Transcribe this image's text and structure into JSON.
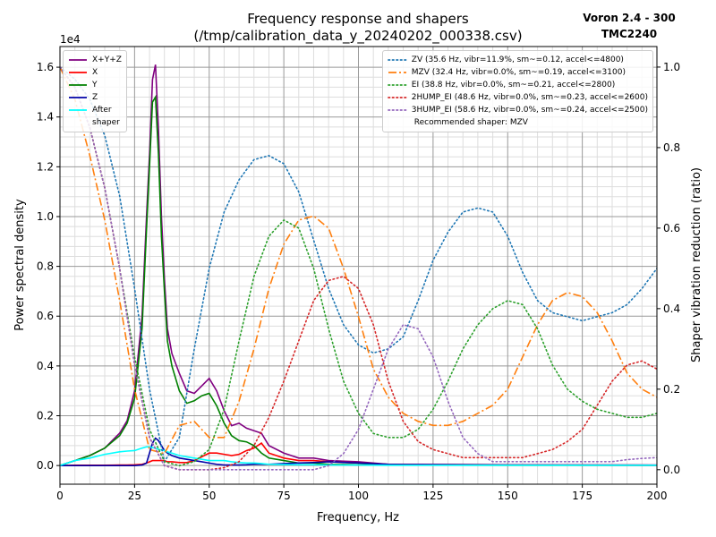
{
  "chart_data": {
    "type": "line",
    "title": [
      "Frequency response and shapers",
      "(/tmp/calibration_data_y_20240202_000338.csv)"
    ],
    "annotation": [
      "Voron 2.4 - 300",
      "TMC2240"
    ],
    "xlabel": "Frequency, Hz",
    "ylabel": "Power spectral density",
    "y2label": "Shaper vibration reduction (ratio)",
    "y_offset_label": "1e4",
    "xlim": [
      0,
      200
    ],
    "xticks": [
      0,
      25,
      50,
      75,
      100,
      125,
      150,
      175,
      200
    ],
    "ylim": [
      -0.075,
      1.683
    ],
    "yticks": [
      {
        "value": 0,
        "label": "0.0"
      },
      0.2,
      0.4,
      0.6,
      0.8,
      {
        "value": 1,
        "label": "1.0"
      },
      1.2,
      1.4,
      1.6
    ],
    "y2lim": [
      -0.036,
      1.051
    ],
    "y2ticks": [
      {
        "value": 0,
        "label": "0.0"
      },
      0.2,
      0.4,
      0.6,
      0.8,
      {
        "value": 1,
        "label": "1.0"
      }
    ],
    "grid": true,
    "minor_grid": true,
    "legend": "upper left",
    "legend2": "upper right",
    "legend2_note": "Recommended shaper: MZV",
    "x": [
      0,
      5,
      10,
      15,
      20,
      22.5,
      25,
      27.5,
      29,
      30,
      31,
      32,
      33,
      34,
      35,
      36,
      37.5,
      40,
      42.5,
      45,
      47.5,
      50,
      52.5,
      55,
      57.5,
      60,
      62.5,
      65,
      67.5,
      70,
      75,
      80,
      85,
      90,
      100,
      110,
      120,
      150,
      200
    ],
    "series": [
      {
        "name": "X+Y+Z",
        "color": "purple",
        "linestyle": "solid",
        "values": [
          0,
          0.02,
          0.04,
          0.07,
          0.13,
          0.18,
          0.3,
          0.6,
          1.0,
          1.25,
          1.55,
          1.61,
          1.35,
          1.0,
          0.75,
          0.55,
          0.45,
          0.37,
          0.3,
          0.29,
          0.32,
          0.35,
          0.3,
          0.22,
          0.16,
          0.17,
          0.15,
          0.14,
          0.13,
          0.08,
          0.05,
          0.03,
          0.03,
          0.02,
          0.015,
          0.005,
          0.005,
          0.003,
          0.002
        ]
      },
      {
        "name": "X",
        "color": "red",
        "linestyle": "solid",
        "values": [
          0,
          0.001,
          0.001,
          0.001,
          0.002,
          0.002,
          0.003,
          0.005,
          0.01,
          0.015,
          0.02,
          0.02,
          0.02,
          0.02,
          0.02,
          0.015,
          0.015,
          0.012,
          0.012,
          0.02,
          0.035,
          0.05,
          0.05,
          0.045,
          0.04,
          0.045,
          0.06,
          0.07,
          0.09,
          0.05,
          0.03,
          0.02,
          0.02,
          0.015,
          0.01,
          0.005,
          0.003,
          0.002,
          0.001
        ]
      },
      {
        "name": "Y",
        "color": "green",
        "linestyle": "solid",
        "values": [
          0,
          0.02,
          0.04,
          0.07,
          0.12,
          0.17,
          0.27,
          0.55,
          0.95,
          1.2,
          1.46,
          1.48,
          1.25,
          0.92,
          0.7,
          0.5,
          0.4,
          0.3,
          0.25,
          0.26,
          0.28,
          0.29,
          0.24,
          0.17,
          0.12,
          0.1,
          0.095,
          0.08,
          0.05,
          0.03,
          0.02,
          0.01,
          0.01,
          0.005,
          0.003,
          0.002,
          0.002,
          0.001,
          0.001
        ]
      },
      {
        "name": "Z",
        "color": "#0000a8",
        "linestyle": "solid",
        "values": [
          0,
          0,
          0,
          0,
          0,
          0,
          0,
          0.002,
          0.01,
          0.05,
          0.09,
          0.11,
          0.1,
          0.08,
          0.06,
          0.05,
          0.04,
          0.03,
          0.025,
          0.02,
          0.015,
          0.01,
          0.005,
          0.002,
          0.002,
          0.002,
          0.003,
          0.005,
          0.005,
          0.005,
          0.008,
          0.01,
          0.012,
          0.015,
          0.01,
          0.005,
          0.003,
          0.002,
          0.001
        ]
      },
      {
        "name": "After\nshaper",
        "color": "cyan",
        "linestyle": "solid",
        "values": [
          0,
          0.02,
          0.03,
          0.045,
          0.055,
          0.058,
          0.06,
          0.07,
          0.075,
          0.075,
          0.072,
          0.07,
          0.065,
          0.062,
          0.06,
          0.055,
          0.05,
          0.04,
          0.035,
          0.03,
          0.025,
          0.02,
          0.02,
          0.02,
          0.015,
          0.012,
          0.01,
          0.01,
          0.008,
          0.005,
          0.004,
          0.003,
          0.003,
          0.002,
          0.002,
          0.001,
          0.001,
          0.001,
          0.001
        ]
      },
      {
        "name": "ZV (35.6 Hz, vibr=11.9%, sm~=0.12, accel<=4800)",
        "color": "#1f77b4",
        "linestyle": "dotted",
        "axis": "y2",
        "x": [
          0,
          5,
          10,
          15,
          20,
          25,
          30,
          35,
          40,
          45,
          50,
          55,
          60,
          65,
          70,
          75,
          80,
          85,
          90,
          95,
          100,
          105,
          110,
          115,
          120,
          125,
          130,
          135,
          140,
          145,
          150,
          155,
          160,
          165,
          170,
          175,
          180,
          185,
          190,
          195,
          200
        ],
        "values": [
          1.0,
          0.97,
          0.92,
          0.83,
          0.68,
          0.45,
          0.2,
          0.02,
          0.08,
          0.3,
          0.5,
          0.64,
          0.72,
          0.77,
          0.78,
          0.76,
          0.69,
          0.57,
          0.45,
          0.36,
          0.31,
          0.29,
          0.3,
          0.33,
          0.42,
          0.52,
          0.59,
          0.64,
          0.65,
          0.64,
          0.58,
          0.49,
          0.42,
          0.39,
          0.38,
          0.37,
          0.38,
          0.39,
          0.41,
          0.45,
          0.5
        ]
      },
      {
        "name": "MZV (32.4 Hz, vibr=0.0%, sm~=0.19, accel<=3100)",
        "color": "#ff7f0e",
        "linestyle": "dashdot",
        "axis": "y2",
        "x": [
          0,
          5,
          10,
          15,
          20,
          25,
          30,
          35,
          40,
          45,
          50,
          55,
          60,
          65,
          70,
          75,
          80,
          85,
          90,
          95,
          100,
          105,
          110,
          115,
          120,
          125,
          130,
          135,
          140,
          145,
          150,
          155,
          160,
          165,
          170,
          175,
          180,
          185,
          190,
          195,
          200
        ],
        "values": [
          1.0,
          0.92,
          0.78,
          0.62,
          0.42,
          0.2,
          0.05,
          0.04,
          0.11,
          0.12,
          0.08,
          0.08,
          0.17,
          0.3,
          0.45,
          0.56,
          0.62,
          0.63,
          0.6,
          0.5,
          0.38,
          0.25,
          0.18,
          0.14,
          0.12,
          0.11,
          0.11,
          0.12,
          0.14,
          0.16,
          0.2,
          0.28,
          0.36,
          0.42,
          0.44,
          0.43,
          0.39,
          0.32,
          0.24,
          0.2,
          0.18
        ]
      },
      {
        "name": "EI (38.8 Hz, vibr=0.0%, sm~=0.21, accel<=2800)",
        "color": "#2ca02c",
        "linestyle": "dotted",
        "axis": "y2",
        "x": [
          0,
          5,
          10,
          15,
          20,
          25,
          30,
          35,
          40,
          45,
          50,
          55,
          60,
          65,
          70,
          75,
          80,
          85,
          90,
          95,
          100,
          105,
          110,
          115,
          120,
          125,
          130,
          135,
          140,
          145,
          150,
          155,
          160,
          165,
          170,
          175,
          180,
          185,
          190,
          195,
          200
        ],
        "values": [
          1.0,
          0.95,
          0.85,
          0.7,
          0.5,
          0.28,
          0.1,
          0.02,
          0.01,
          0.02,
          0.05,
          0.15,
          0.32,
          0.48,
          0.58,
          0.62,
          0.6,
          0.5,
          0.35,
          0.22,
          0.14,
          0.09,
          0.08,
          0.08,
          0.1,
          0.15,
          0.22,
          0.3,
          0.36,
          0.4,
          0.42,
          0.41,
          0.35,
          0.26,
          0.2,
          0.17,
          0.15,
          0.14,
          0.13,
          0.13,
          0.14
        ]
      },
      {
        "name": "2HUMP_EI (48.6 Hz, vibr=0.0%, sm~=0.23, accel<=2600)",
        "color": "#d62728",
        "linestyle": "dotted",
        "axis": "y2",
        "x": [
          0,
          5,
          10,
          15,
          20,
          25,
          30,
          35,
          40,
          45,
          50,
          55,
          60,
          65,
          70,
          75,
          80,
          85,
          90,
          95,
          100,
          105,
          110,
          115,
          120,
          125,
          130,
          135,
          140,
          145,
          150,
          155,
          160,
          165,
          170,
          175,
          180,
          185,
          190,
          195,
          200
        ],
        "values": [
          1.0,
          0.95,
          0.85,
          0.7,
          0.5,
          0.26,
          0.08,
          0.01,
          0,
          0,
          0,
          0.005,
          0.02,
          0.06,
          0.13,
          0.22,
          0.32,
          0.42,
          0.47,
          0.48,
          0.45,
          0.36,
          0.22,
          0.12,
          0.07,
          0.05,
          0.04,
          0.03,
          0.03,
          0.03,
          0.03,
          0.03,
          0.04,
          0.05,
          0.07,
          0.1,
          0.16,
          0.22,
          0.26,
          0.27,
          0.25
        ]
      },
      {
        "name": "3HUMP_EI (58.6 Hz, vibr=0.0%, sm~=0.24, accel<=2500)",
        "color": "#9467bd",
        "linestyle": "dotted",
        "axis": "y2",
        "x": [
          0,
          5,
          10,
          15,
          20,
          25,
          30,
          35,
          40,
          45,
          50,
          55,
          60,
          65,
          70,
          75,
          80,
          85,
          90,
          95,
          100,
          105,
          110,
          115,
          120,
          125,
          130,
          135,
          140,
          145,
          150,
          155,
          160,
          165,
          170,
          175,
          180,
          185,
          190,
          195,
          200
        ],
        "values": [
          1.0,
          0.95,
          0.85,
          0.7,
          0.5,
          0.26,
          0.08,
          0.01,
          0,
          0,
          0,
          0,
          0,
          0,
          0,
          0,
          0,
          0,
          0.01,
          0.04,
          0.1,
          0.2,
          0.3,
          0.36,
          0.35,
          0.28,
          0.17,
          0.08,
          0.04,
          0.02,
          0.02,
          0.02,
          0.02,
          0.02,
          0.02,
          0.02,
          0.02,
          0.02,
          0.025,
          0.028,
          0.03
        ]
      }
    ]
  }
}
